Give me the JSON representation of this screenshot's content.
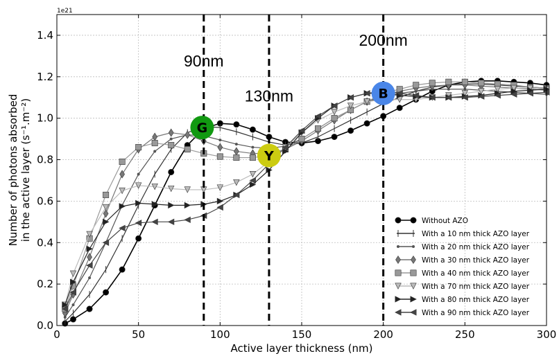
{
  "chart_data": {
    "type": "line",
    "title": "",
    "xlabel": "Active layer thickness (nm)",
    "ylabel_lines": [
      "Number of photons absorbed",
      "in the active layer (s⁻¹.m⁻²)"
    ],
    "offset_text": "1e21",
    "xlim": [
      0,
      300
    ],
    "ylim": [
      0.0,
      1.5
    ],
    "x_ticks": [
      0,
      50,
      100,
      150,
      200,
      250,
      300
    ],
    "y_ticks": [
      0.0,
      0.2,
      0.4,
      0.6,
      0.8,
      1.0,
      1.2,
      1.4
    ],
    "x_tick_labels": [
      "0",
      "50",
      "100",
      "150",
      "200",
      "250",
      "300"
    ],
    "y_tick_labels": [
      "0.0",
      "0.2",
      "0.4",
      "0.6",
      "0.8",
      "1.0",
      "1.2",
      "1.4"
    ],
    "grid": true,
    "legend_position": "lower-right",
    "series": [
      {
        "name": "Without AZO",
        "marker": "circle",
        "color": "#000000",
        "points": [
          [
            5,
            0.01
          ],
          [
            10,
            0.03
          ],
          [
            20,
            0.08
          ],
          [
            30,
            0.16
          ],
          [
            40,
            0.27
          ],
          [
            50,
            0.42
          ],
          [
            60,
            0.58
          ],
          [
            70,
            0.74
          ],
          [
            80,
            0.87
          ],
          [
            90,
            0.95
          ],
          [
            100,
            0.975
          ],
          [
            110,
            0.97
          ],
          [
            120,
            0.945
          ],
          [
            130,
            0.91
          ],
          [
            140,
            0.885
          ],
          [
            150,
            0.88
          ],
          [
            160,
            0.89
          ],
          [
            170,
            0.91
          ],
          [
            180,
            0.94
          ],
          [
            190,
            0.975
          ],
          [
            200,
            1.01
          ],
          [
            210,
            1.05
          ],
          [
            220,
            1.09
          ],
          [
            230,
            1.13
          ],
          [
            240,
            1.16
          ],
          [
            250,
            1.175
          ],
          [
            260,
            1.18
          ],
          [
            270,
            1.18
          ],
          [
            280,
            1.175
          ],
          [
            290,
            1.17
          ],
          [
            300,
            1.16
          ]
        ]
      },
      {
        "name": "With a 10 nm thick AZO layer",
        "marker": "line",
        "color": "#333333",
        "points": [
          [
            5,
            0.02
          ],
          [
            10,
            0.06
          ],
          [
            20,
            0.15
          ],
          [
            30,
            0.27
          ],
          [
            40,
            0.42
          ],
          [
            50,
            0.58
          ],
          [
            60,
            0.73
          ],
          [
            70,
            0.85
          ],
          [
            80,
            0.93
          ],
          [
            90,
            0.96
          ],
          [
            100,
            0.955
          ],
          [
            110,
            0.935
          ],
          [
            120,
            0.91
          ],
          [
            130,
            0.885
          ],
          [
            140,
            0.87
          ],
          [
            150,
            0.88
          ],
          [
            160,
            0.91
          ],
          [
            170,
            0.95
          ],
          [
            180,
            0.99
          ],
          [
            190,
            1.03
          ],
          [
            200,
            1.07
          ],
          [
            210,
            1.1
          ],
          [
            220,
            1.13
          ],
          [
            230,
            1.15
          ],
          [
            240,
            1.16
          ],
          [
            250,
            1.165
          ],
          [
            260,
            1.165
          ],
          [
            270,
            1.16
          ],
          [
            280,
            1.155
          ],
          [
            290,
            1.15
          ],
          [
            300,
            1.145
          ]
        ]
      },
      {
        "name": "With a 20 nm thick AZO layer",
        "marker": "dot",
        "color": "#555555",
        "points": [
          [
            5,
            0.04
          ],
          [
            10,
            0.1
          ],
          [
            20,
            0.23
          ],
          [
            30,
            0.4
          ],
          [
            40,
            0.58
          ],
          [
            50,
            0.73
          ],
          [
            60,
            0.84
          ],
          [
            70,
            0.9
          ],
          [
            80,
            0.92
          ],
          [
            90,
            0.915
          ],
          [
            100,
            0.895
          ],
          [
            110,
            0.875
          ],
          [
            120,
            0.86
          ],
          [
            130,
            0.855
          ],
          [
            140,
            0.865
          ],
          [
            150,
            0.9
          ],
          [
            160,
            0.95
          ],
          [
            170,
            1.0
          ],
          [
            180,
            1.04
          ],
          [
            190,
            1.08
          ],
          [
            200,
            1.1
          ],
          [
            210,
            1.12
          ],
          [
            220,
            1.13
          ],
          [
            230,
            1.14
          ],
          [
            240,
            1.14
          ],
          [
            250,
            1.14
          ],
          [
            260,
            1.135
          ],
          [
            270,
            1.13
          ],
          [
            280,
            1.125
          ],
          [
            290,
            1.12
          ],
          [
            300,
            1.115
          ]
        ]
      },
      {
        "name": "With a 30 nm thick AZO layer",
        "marker": "diamond",
        "color": "#777777",
        "points": [
          [
            5,
            0.06
          ],
          [
            10,
            0.15
          ],
          [
            20,
            0.33
          ],
          [
            30,
            0.54
          ],
          [
            40,
            0.73
          ],
          [
            50,
            0.85
          ],
          [
            60,
            0.91
          ],
          [
            70,
            0.93
          ],
          [
            80,
            0.92
          ],
          [
            90,
            0.89
          ],
          [
            100,
            0.86
          ],
          [
            110,
            0.84
          ],
          [
            120,
            0.83
          ],
          [
            130,
            0.83
          ],
          [
            140,
            0.85
          ],
          [
            150,
            0.89
          ],
          [
            160,
            0.94
          ],
          [
            170,
            0.99
          ],
          [
            180,
            1.04
          ],
          [
            190,
            1.08
          ],
          [
            200,
            1.11
          ],
          [
            210,
            1.13
          ],
          [
            220,
            1.145
          ],
          [
            230,
            1.155
          ],
          [
            240,
            1.16
          ],
          [
            250,
            1.16
          ],
          [
            260,
            1.155
          ],
          [
            270,
            1.15
          ],
          [
            280,
            1.145
          ],
          [
            290,
            1.14
          ],
          [
            300,
            1.135
          ]
        ]
      },
      {
        "name": "With a 40 nm thick AZO layer",
        "marker": "square",
        "color": "#999999",
        "points": [
          [
            5,
            0.08
          ],
          [
            10,
            0.19
          ],
          [
            20,
            0.42
          ],
          [
            30,
            0.63
          ],
          [
            40,
            0.79
          ],
          [
            50,
            0.86
          ],
          [
            60,
            0.88
          ],
          [
            70,
            0.87
          ],
          [
            80,
            0.85
          ],
          [
            90,
            0.83
          ],
          [
            100,
            0.815
          ],
          [
            110,
            0.81
          ],
          [
            120,
            0.81
          ],
          [
            130,
            0.82
          ],
          [
            140,
            0.85
          ],
          [
            150,
            0.9
          ],
          [
            160,
            0.95
          ],
          [
            170,
            1.0
          ],
          [
            180,
            1.04
          ],
          [
            190,
            1.08
          ],
          [
            200,
            1.12
          ],
          [
            210,
            1.14
          ],
          [
            220,
            1.16
          ],
          [
            230,
            1.17
          ],
          [
            240,
            1.175
          ],
          [
            250,
            1.175
          ],
          [
            260,
            1.17
          ],
          [
            270,
            1.165
          ],
          [
            280,
            1.16
          ],
          [
            290,
            1.15
          ],
          [
            300,
            1.145
          ]
        ]
      },
      {
        "name": "With a 70 nm thick AZO layer",
        "marker": "triangle-down",
        "color": "#bbbbbb",
        "points": [
          [
            5,
            0.1
          ],
          [
            10,
            0.25
          ],
          [
            20,
            0.44
          ],
          [
            30,
            0.57
          ],
          [
            40,
            0.65
          ],
          [
            50,
            0.675
          ],
          [
            60,
            0.67
          ],
          [
            70,
            0.66
          ],
          [
            80,
            0.655
          ],
          [
            90,
            0.655
          ],
          [
            100,
            0.665
          ],
          [
            110,
            0.69
          ],
          [
            120,
            0.73
          ],
          [
            130,
            0.79
          ],
          [
            140,
            0.86
          ],
          [
            150,
            0.93
          ],
          [
            160,
            0.99
          ],
          [
            170,
            1.03
          ],
          [
            180,
            1.06
          ],
          [
            190,
            1.08
          ],
          [
            200,
            1.09
          ],
          [
            210,
            1.09
          ],
          [
            220,
            1.09
          ],
          [
            230,
            1.1
          ],
          [
            240,
            1.11
          ],
          [
            250,
            1.12
          ],
          [
            260,
            1.13
          ],
          [
            270,
            1.14
          ],
          [
            280,
            1.145
          ],
          [
            290,
            1.145
          ],
          [
            300,
            1.14
          ]
        ]
      },
      {
        "name": "With a 80 nm thick AZO layer",
        "marker": "triangle-right",
        "color": "#222222",
        "points": [
          [
            5,
            0.1
          ],
          [
            10,
            0.21
          ],
          [
            20,
            0.37
          ],
          [
            30,
            0.5
          ],
          [
            40,
            0.575
          ],
          [
            50,
            0.59
          ],
          [
            60,
            0.585
          ],
          [
            70,
            0.58
          ],
          [
            80,
            0.58
          ],
          [
            90,
            0.585
          ],
          [
            100,
            0.6
          ],
          [
            110,
            0.63
          ],
          [
            120,
            0.68
          ],
          [
            130,
            0.75
          ],
          [
            140,
            0.84
          ],
          [
            150,
            0.93
          ],
          [
            160,
            1.0
          ],
          [
            170,
            1.06
          ],
          [
            180,
            1.1
          ],
          [
            190,
            1.12
          ],
          [
            200,
            1.12
          ],
          [
            210,
            1.11
          ],
          [
            220,
            1.105
          ],
          [
            230,
            1.1
          ],
          [
            240,
            1.1
          ],
          [
            250,
            1.105
          ],
          [
            260,
            1.11
          ],
          [
            270,
            1.12
          ],
          [
            280,
            1.13
          ],
          [
            290,
            1.135
          ],
          [
            300,
            1.14
          ]
        ]
      },
      {
        "name": "With a 90 nm thick AZO layer",
        "marker": "triangle-left",
        "color": "#444444",
        "points": [
          [
            5,
            0.08
          ],
          [
            10,
            0.16
          ],
          [
            20,
            0.29
          ],
          [
            30,
            0.4
          ],
          [
            40,
            0.47
          ],
          [
            50,
            0.495
          ],
          [
            60,
            0.5
          ],
          [
            70,
            0.5
          ],
          [
            80,
            0.51
          ],
          [
            90,
            0.53
          ],
          [
            100,
            0.57
          ],
          [
            110,
            0.63
          ],
          [
            120,
            0.7
          ],
          [
            130,
            0.78
          ],
          [
            140,
            0.86
          ],
          [
            150,
            0.94
          ],
          [
            160,
            1.01
          ],
          [
            170,
            1.06
          ],
          [
            180,
            1.1
          ],
          [
            190,
            1.12
          ],
          [
            200,
            1.13
          ],
          [
            210,
            1.12
          ],
          [
            220,
            1.11
          ],
          [
            230,
            1.1
          ],
          [
            240,
            1.1
          ],
          [
            250,
            1.1
          ],
          [
            260,
            1.105
          ],
          [
            270,
            1.11
          ],
          [
            280,
            1.115
          ],
          [
            290,
            1.12
          ],
          [
            300,
            1.125
          ]
        ]
      }
    ],
    "vertical_lines": [
      {
        "x": 90,
        "label": "90nm",
        "label_y": 1.25
      },
      {
        "x": 130,
        "label": "130nm",
        "label_y": 1.08
      },
      {
        "x": 200,
        "label": "200nm",
        "label_y": 1.35
      }
    ],
    "point_markers": [
      {
        "letter": "G",
        "x": 89,
        "y": 0.955,
        "color": "#119911"
      },
      {
        "letter": "Y",
        "x": 130,
        "y": 0.82,
        "color": "#cccc11"
      },
      {
        "letter": "B",
        "x": 200,
        "y": 1.12,
        "color": "#4a86e8"
      }
    ]
  }
}
